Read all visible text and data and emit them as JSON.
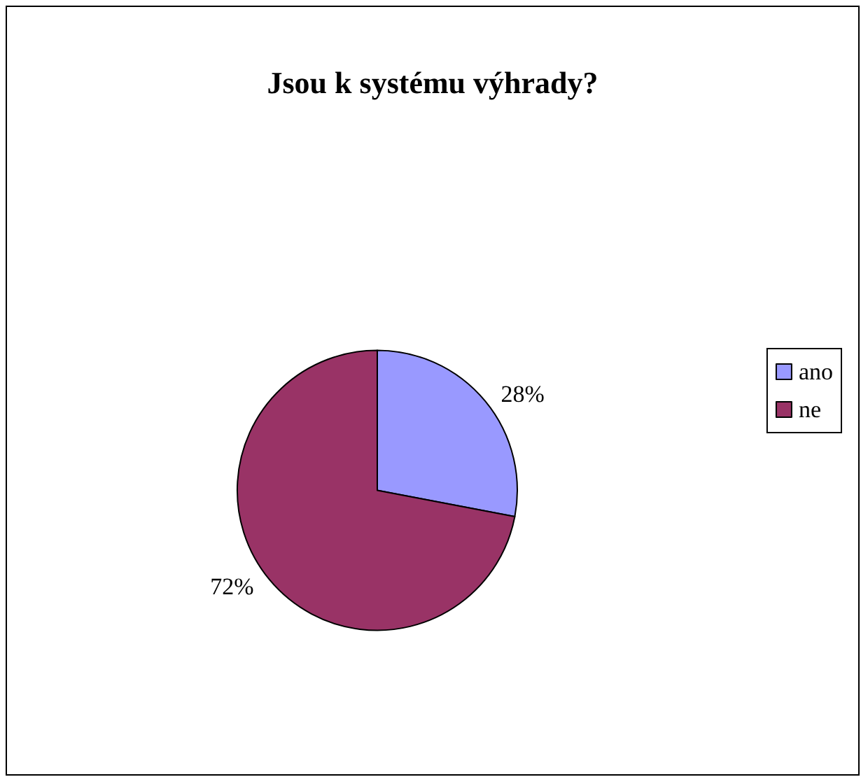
{
  "chart_data": {
    "type": "pie",
    "title": "Jsou k systému výhrady?",
    "categories": [
      "ano",
      "ne"
    ],
    "values": [
      28,
      72
    ],
    "colors": [
      "#9999ff",
      "#993366"
    ],
    "value_labels": [
      "28%",
      "72%"
    ],
    "legend": "right"
  }
}
